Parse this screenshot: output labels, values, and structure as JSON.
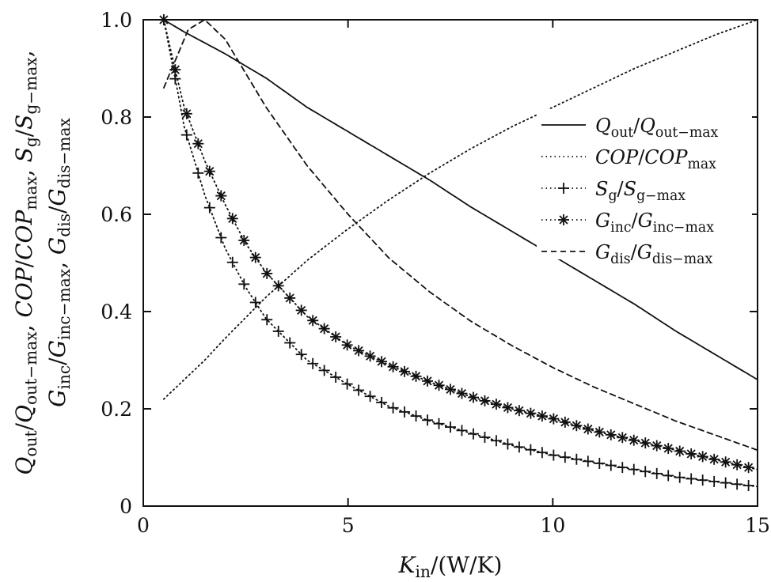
{
  "chart_data": {
    "type": "line",
    "title": "",
    "xlabel": "K_{in}/(W/K)",
    "ylabel_lines": [
      "Q_{out}/Q_{out−max}, COP/COP_{max}, S_{g}/S_{g−max},",
      "G_{inc}/G_{inc−max}, G_{dis}/G_{dis−max}"
    ],
    "xlim": [
      0,
      15
    ],
    "ylim": [
      0,
      1.0
    ],
    "xticks": [
      0,
      5,
      10,
      15
    ],
    "xtick_labels": [
      "0",
      "5",
      "10",
      "15"
    ],
    "yticks": [
      0,
      0.2,
      0.4,
      0.6,
      0.8,
      1.0
    ],
    "ytick_labels": [
      "0",
      "0.2",
      "0.4",
      "0.6",
      "0.8",
      "1.0"
    ],
    "grid": false,
    "legend_position": "upper-right",
    "marker_step": 0.28,
    "series": [
      {
        "name": "Q_{out}/Q_{out−max}",
        "style": "solid",
        "marker": "none",
        "x": [
          0.5,
          1,
          2,
          3,
          4,
          5,
          6,
          7,
          8,
          9,
          10,
          11,
          12,
          13,
          14,
          15
        ],
        "y": [
          1.0,
          0.975,
          0.93,
          0.88,
          0.82,
          0.77,
          0.72,
          0.67,
          0.615,
          0.565,
          0.515,
          0.465,
          0.415,
          0.36,
          0.31,
          0.26
        ]
      },
      {
        "name": "COP/COP_{max}",
        "style": "dotted",
        "marker": "none",
        "x": [
          0.5,
          1,
          1.5,
          2,
          3,
          4,
          5,
          6,
          7,
          8,
          9,
          10,
          11,
          12,
          13,
          14,
          15
        ],
        "y": [
          0.22,
          0.26,
          0.3,
          0.345,
          0.43,
          0.505,
          0.57,
          0.63,
          0.685,
          0.735,
          0.78,
          0.82,
          0.86,
          0.9,
          0.935,
          0.97,
          1.0
        ]
      },
      {
        "name": "S_{g}/S_{g−max}",
        "style": "dotted",
        "marker": "plus",
        "x": [
          0.5,
          0.8,
          1,
          1.5,
          2,
          2.5,
          3,
          4,
          5,
          6,
          7,
          8,
          9,
          10,
          11,
          12,
          13,
          14,
          15
        ],
        "y": [
          1.0,
          0.87,
          0.78,
          0.64,
          0.53,
          0.45,
          0.385,
          0.3,
          0.25,
          0.205,
          0.175,
          0.15,
          0.125,
          0.105,
          0.09,
          0.075,
          0.06,
          0.05,
          0.04
        ]
      },
      {
        "name": "G_{inc}/G_{inc−max}",
        "style": "dotted",
        "marker": "asterisk",
        "x": [
          0.5,
          0.8,
          1,
          1.5,
          2,
          2.5,
          3,
          4,
          5,
          6,
          7,
          8,
          9,
          10,
          11,
          12,
          13,
          14,
          15
        ],
        "y": [
          1.0,
          0.89,
          0.82,
          0.71,
          0.62,
          0.54,
          0.48,
          0.39,
          0.33,
          0.29,
          0.255,
          0.225,
          0.2,
          0.18,
          0.155,
          0.135,
          0.115,
          0.095,
          0.075
        ]
      },
      {
        "name": "G_{dis}/G_{dis−max}",
        "style": "dashed",
        "marker": "none",
        "x": [
          0.5,
          0.8,
          1.1,
          1.5,
          2,
          3,
          4,
          5,
          6,
          7,
          8,
          9,
          10,
          11,
          12,
          13,
          14,
          15
        ],
        "y": [
          0.86,
          0.92,
          0.98,
          1.0,
          0.96,
          0.82,
          0.7,
          0.6,
          0.51,
          0.44,
          0.38,
          0.33,
          0.285,
          0.245,
          0.21,
          0.175,
          0.145,
          0.115
        ]
      }
    ]
  }
}
